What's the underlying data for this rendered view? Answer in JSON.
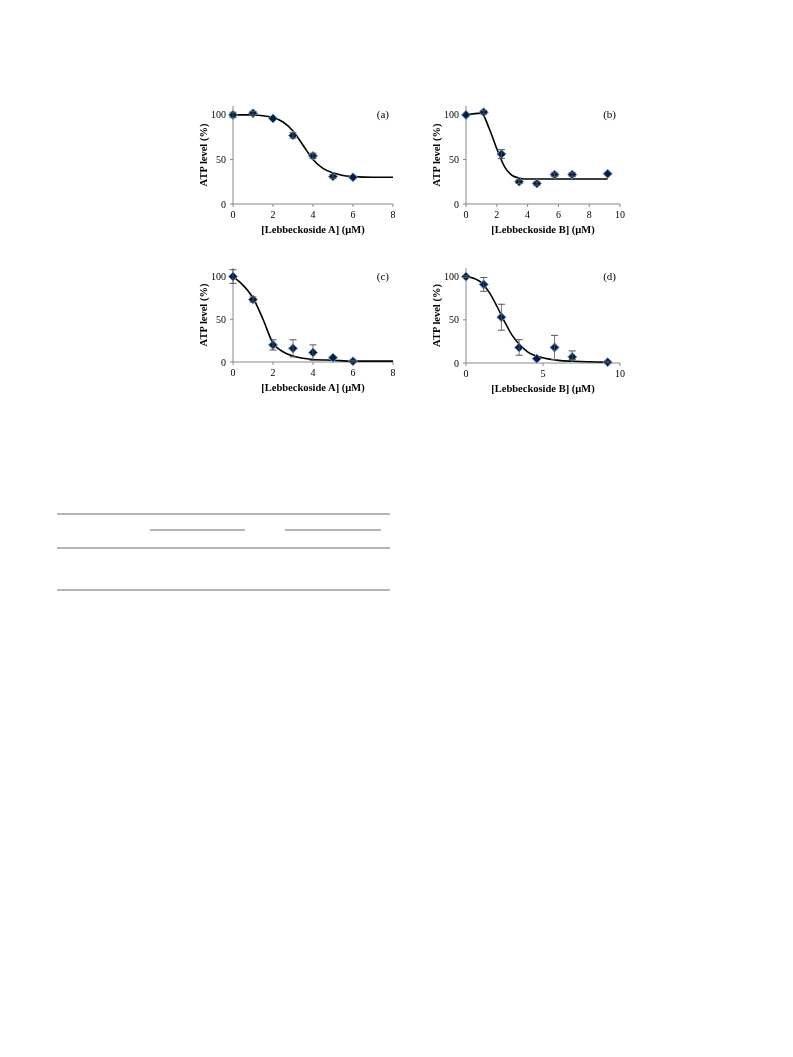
{
  "chart_data": [
    {
      "type": "scatter",
      "xlabel": "[Lebbeckoside A] (µM)",
      "ylabel": "ATP level (%)",
      "annotations": [
        "(a)"
      ],
      "xlim": [
        0,
        8
      ],
      "xticks": [
        0,
        2,
        4,
        6,
        8
      ],
      "ylim": [
        0,
        110
      ],
      "yticks": [
        0,
        50,
        100
      ],
      "series": [
        {
          "color": "#0d1b3e",
          "marker": "diamond",
          "x": [
            0,
            1,
            2,
            3,
            4,
            5,
            6
          ],
          "values": [
            100,
            102,
            96,
            77,
            54,
            31,
            30
          ],
          "errors": [
            3,
            2,
            null,
            3,
            3,
            2,
            null
          ]
        },
        {
          "type": "line",
          "color": "#000000",
          "marker": "none",
          "x": [
            0,
            1,
            1.5,
            2,
            2.5,
            3,
            3.5,
            4,
            4.5,
            5,
            5.5,
            6,
            7,
            8
          ],
          "values": [
            100,
            100,
            99,
            97,
            92,
            82,
            66,
            50,
            40,
            35,
            32,
            31,
            30,
            30
          ]
        }
      ]
    },
    {
      "type": "scatter",
      "xlabel": "[Lebbeckoside B] (µM)",
      "ylabel": "ATP level (%)",
      "annotations": [
        "(b)"
      ],
      "xlim": [
        0,
        10
      ],
      "xticks": [
        0,
        2,
        4,
        6,
        8,
        10
      ],
      "ylim": [
        0,
        110
      ],
      "yticks": [
        0,
        50,
        100
      ],
      "series": [
        {
          "color": "#0d1b3e",
          "marker": "diamond",
          "x": [
            0,
            1.15,
            2.3,
            3.45,
            4.6,
            5.75,
            6.9,
            9.2
          ],
          "values": [
            100,
            103,
            56,
            25,
            23,
            33,
            33,
            34
          ],
          "errors": [
            null,
            2,
            5,
            2,
            2,
            2,
            2,
            null
          ]
        },
        {
          "type": "line",
          "color": "#000000",
          "marker": "none",
          "x": [
            0,
            1,
            1.5,
            2,
            2.5,
            3,
            3.5,
            4,
            9.2
          ],
          "values": [
            100,
            102,
            85,
            62,
            42,
            32,
            29,
            28,
            28
          ]
        }
      ]
    },
    {
      "type": "scatter",
      "xlabel": "[Lebbeckoside A] (µM)",
      "ylabel": "ATP level (%)",
      "annotations": [
        "(c)"
      ],
      "xlim": [
        0,
        8
      ],
      "xticks": [
        0,
        2,
        4,
        6,
        8
      ],
      "ylim": [
        0,
        110
      ],
      "yticks": [
        0,
        50,
        100
      ],
      "series": [
        {
          "color": "#0d1b3e",
          "marker": "diamond",
          "x": [
            0,
            1,
            2,
            3,
            4,
            5,
            6
          ],
          "values": [
            100,
            73,
            20,
            16,
            11,
            5,
            1
          ],
          "errors": [
            8,
            3,
            6,
            10,
            9,
            null,
            1
          ]
        },
        {
          "type": "line",
          "color": "#000000",
          "marker": "none",
          "x": [
            0,
            0.5,
            1,
            1.5,
            2,
            2.5,
            3,
            4,
            5,
            6,
            8
          ],
          "values": [
            100,
            90,
            75,
            50,
            22,
            12,
            7,
            3,
            2,
            1,
            1
          ]
        }
      ]
    },
    {
      "type": "scatter",
      "xlabel": "[Lebbeckoside B] (µM)",
      "ylabel": "ATP level (%)",
      "annotations": [
        "(d)"
      ],
      "xlim": [
        0,
        10
      ],
      "xticks": [
        0,
        5,
        10
      ],
      "ylim": [
        0,
        110
      ],
      "yticks": [
        0,
        50,
        100
      ],
      "series": [
        {
          "color": "#0d1b3e",
          "marker": "diamond",
          "x": [
            0,
            1.15,
            2.3,
            3.45,
            4.6,
            5.75,
            6.9,
            9.2
          ],
          "values": [
            100,
            91,
            53,
            18,
            5,
            18,
            7,
            1
          ],
          "errors": [
            1,
            8,
            15,
            9,
            null,
            14,
            [
              4,
              14
            ],
            1
          ]
        },
        {
          "type": "line",
          "color": "#000000",
          "marker": "none",
          "x": [
            0,
            0.5,
            1,
            1.5,
            2,
            2.5,
            3,
            3.5,
            4,
            5,
            6,
            7,
            9.2
          ],
          "values": [
            100,
            98,
            93,
            82,
            66,
            48,
            32,
            21,
            13,
            6,
            3,
            2,
            1
          ]
        }
      ]
    }
  ]
}
